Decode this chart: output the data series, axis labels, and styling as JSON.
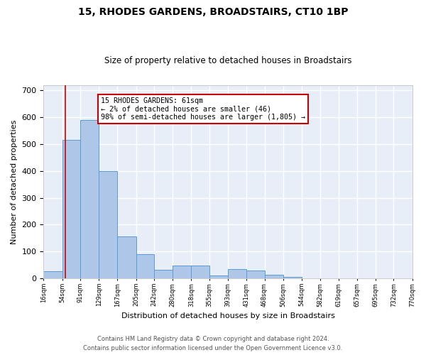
{
  "title": "15, RHODES GARDENS, BROADSTAIRS, CT10 1BP",
  "subtitle": "Size of property relative to detached houses in Broadstairs",
  "xlabel": "Distribution of detached houses by size in Broadstairs",
  "ylabel": "Number of detached properties",
  "bar_color": "#aec6e8",
  "bar_edge_color": "#5b9bd5",
  "background_color": "#e8eef8",
  "grid_color": "#ffffff",
  "property_line_x": 61,
  "annotation_text": "15 RHODES GARDENS: 61sqm\n← 2% of detached houses are smaller (46)\n98% of semi-detached houses are larger (1,805) →",
  "annotation_box_color": "#ffffff",
  "annotation_box_edge_color": "#cc0000",
  "property_line_color": "#cc0000",
  "bin_edges": [
    16,
    54,
    91,
    129,
    167,
    205,
    242,
    280,
    318,
    355,
    393,
    431,
    468,
    506,
    544,
    582,
    619,
    657,
    695,
    732,
    770
  ],
  "bin_counts": [
    27,
    515,
    590,
    400,
    157,
    90,
    32,
    48,
    48,
    10,
    35,
    30,
    15,
    5,
    0,
    0,
    0,
    0,
    0,
    0
  ],
  "ylim": [
    0,
    720
  ],
  "yticks": [
    0,
    100,
    200,
    300,
    400,
    500,
    600,
    700
  ],
  "footer_line1": "Contains HM Land Registry data © Crown copyright and database right 2024.",
  "footer_line2": "Contains public sector information licensed under the Open Government Licence v3.0."
}
